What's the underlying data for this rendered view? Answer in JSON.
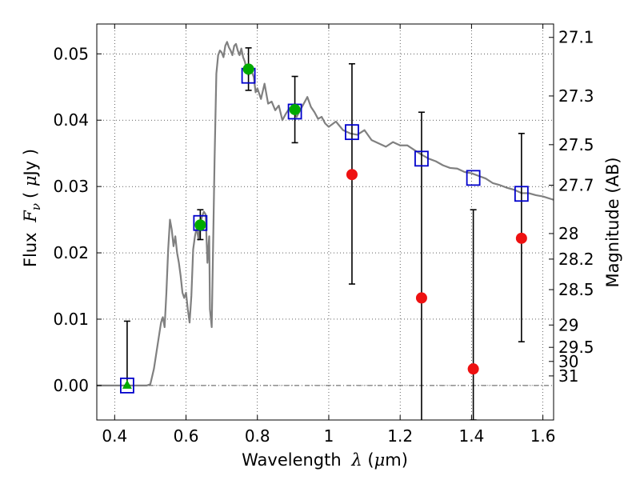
{
  "chart_data": {
    "type": "scatter",
    "xlabel_text": "Wavelength",
    "xlabel_symbol": "λ",
    "xlabel_unit_open": "(",
    "xlabel_unit_mu": "μ",
    "xlabel_unit_rest": "m)",
    "ylabel_text": "Flux",
    "ylabel_symbol": "F",
    "ylabel_sub": "ν",
    "ylabel_unit_open": "(",
    "ylabel_unit_mu": "μ",
    "ylabel_unit_rest": "Jy )",
    "y2label": "Magnitude (AB)",
    "xlim": [
      0.35,
      1.63
    ],
    "ylim": [
      -0.0052,
      0.0545
    ],
    "grid": true,
    "x_ticks": [
      {
        "value": 0.4,
        "label": "0.4"
      },
      {
        "value": 0.6,
        "label": "0.6"
      },
      {
        "value": 0.8,
        "label": "0.8"
      },
      {
        "value": 1.0,
        "label": "1"
      },
      {
        "value": 1.2,
        "label": "1.2"
      },
      {
        "value": 1.4,
        "label": "1.4"
      },
      {
        "value": 1.6,
        "label": "1.6"
      }
    ],
    "y_ticks": [
      {
        "value": 0.0,
        "label": "0.00"
      },
      {
        "value": 0.01,
        "label": "0.01"
      },
      {
        "value": 0.02,
        "label": "0.02"
      },
      {
        "value": 0.03,
        "label": "0.03"
      },
      {
        "value": 0.04,
        "label": "0.04"
      },
      {
        "value": 0.05,
        "label": "0.05"
      }
    ],
    "y2_ticks": [
      {
        "value": 27.1,
        "label": "27.1"
      },
      {
        "value": 27.3,
        "label": "27.3"
      },
      {
        "value": 27.5,
        "label": "27.5"
      },
      {
        "value": 27.7,
        "label": "27.7"
      },
      {
        "value": 28.0,
        "label": "28"
      },
      {
        "value": 28.2,
        "label": "28.2"
      },
      {
        "value": 28.5,
        "label": "28.5"
      },
      {
        "value": 29.0,
        "label": "29"
      },
      {
        "value": 29.5,
        "label": "29.5"
      },
      {
        "value": 30.0,
        "label": "30"
      },
      {
        "value": 31.0,
        "label": "31"
      }
    ],
    "model_spectrum": {
      "color": "#808080",
      "x": [
        0.35,
        0.49,
        0.5,
        0.51,
        0.52,
        0.53,
        0.535,
        0.54,
        0.545,
        0.55,
        0.555,
        0.56,
        0.565,
        0.57,
        0.575,
        0.58,
        0.585,
        0.59,
        0.595,
        0.6,
        0.605,
        0.61,
        0.615,
        0.62,
        0.625,
        0.63,
        0.635,
        0.64,
        0.645,
        0.65,
        0.655,
        0.66,
        0.665,
        0.667,
        0.672,
        0.68,
        0.685,
        0.69,
        0.695,
        0.7,
        0.705,
        0.71,
        0.715,
        0.72,
        0.725,
        0.73,
        0.735,
        0.74,
        0.745,
        0.75,
        0.755,
        0.76,
        0.765,
        0.77,
        0.775,
        0.78,
        0.785,
        0.79,
        0.795,
        0.8,
        0.81,
        0.82,
        0.83,
        0.84,
        0.85,
        0.86,
        0.87,
        0.88,
        0.89,
        0.9,
        0.91,
        0.92,
        0.93,
        0.94,
        0.95,
        0.96,
        0.97,
        0.98,
        0.99,
        1.0,
        1.02,
        1.04,
        1.06,
        1.08,
        1.1,
        1.12,
        1.14,
        1.16,
        1.18,
        1.2,
        1.22,
        1.24,
        1.26,
        1.28,
        1.3,
        1.32,
        1.34,
        1.36,
        1.38,
        1.4,
        1.42,
        1.44,
        1.46,
        1.48,
        1.5,
        1.52,
        1.54,
        1.56,
        1.58,
        1.6,
        1.63
      ],
      "y": [
        0.0,
        0.0,
        0.0002,
        0.0025,
        0.006,
        0.0095,
        0.0103,
        0.0088,
        0.014,
        0.0205,
        0.025,
        0.0235,
        0.021,
        0.0225,
        0.02,
        0.0185,
        0.0165,
        0.014,
        0.0132,
        0.014,
        0.0115,
        0.0095,
        0.0135,
        0.0205,
        0.0225,
        0.0238,
        0.022,
        0.0245,
        0.0255,
        0.0262,
        0.0258,
        0.0185,
        0.0225,
        0.0115,
        0.0088,
        0.034,
        0.047,
        0.0498,
        0.0505,
        0.0502,
        0.0495,
        0.0512,
        0.0518,
        0.051,
        0.0505,
        0.0498,
        0.0512,
        0.0515,
        0.0505,
        0.0498,
        0.0508,
        0.0495,
        0.0488,
        0.0475,
        0.0468,
        0.0478,
        0.0472,
        0.0465,
        0.0442,
        0.0448,
        0.0432,
        0.0455,
        0.0425,
        0.0428,
        0.0415,
        0.0422,
        0.04,
        0.041,
        0.0418,
        0.0412,
        0.0405,
        0.0415,
        0.0425,
        0.0435,
        0.042,
        0.0412,
        0.0402,
        0.0405,
        0.0395,
        0.039,
        0.0398,
        0.0385,
        0.038,
        0.0378,
        0.0385,
        0.037,
        0.0365,
        0.036,
        0.0367,
        0.0362,
        0.0362,
        0.0355,
        0.0348,
        0.0342,
        0.0338,
        0.0332,
        0.0328,
        0.0327,
        0.0322,
        0.032,
        0.0316,
        0.0312,
        0.0305,
        0.0302,
        0.0298,
        0.0295,
        0.029,
        0.029,
        0.0287,
        0.0285,
        0.028
      ]
    },
    "model_points": {
      "color": "#0000cc",
      "marker": "square",
      "points": [
        {
          "x": 0.435,
          "y": 0.0
        },
        {
          "x": 0.64,
          "y": 0.0245
        },
        {
          "x": 0.775,
          "y": 0.0467
        },
        {
          "x": 0.905,
          "y": 0.0413
        },
        {
          "x": 1.065,
          "y": 0.0382
        },
        {
          "x": 1.26,
          "y": 0.0342
        },
        {
          "x": 1.405,
          "y": 0.0313
        },
        {
          "x": 1.54,
          "y": 0.0289
        }
      ]
    },
    "detections": {
      "color": "#00aa00",
      "marker": "circle",
      "points": [
        {
          "x": 0.64,
          "y": 0.0242,
          "yerr_low": 0.0022,
          "yerr_high": 0.0023
        },
        {
          "x": 0.775,
          "y": 0.0477,
          "yerr_low": 0.0032,
          "yerr_high": 0.0032
        },
        {
          "x": 0.905,
          "y": 0.0416,
          "yerr_low": 0.005,
          "yerr_high": 0.005
        }
      ]
    },
    "upper_limit_point": {
      "color": "#00aa00",
      "marker": "triangle",
      "x": 0.435,
      "y": 0.0,
      "err_top": 0.0097
    },
    "low_sn_points": {
      "color": "#ee1111",
      "marker": "circle",
      "points": [
        {
          "x": 1.065,
          "y": 0.0318,
          "yerr_low": 0.0165,
          "yerr_high": 0.0167
        },
        {
          "x": 1.26,
          "y": 0.0132,
          "yerr_low": 0.0185,
          "yerr_high": 0.028
        },
        {
          "x": 1.405,
          "y": 0.0025,
          "yerr_low": 0.0077,
          "yerr_high": 0.024
        },
        {
          "x": 1.54,
          "y": 0.0222,
          "yerr_low": 0.0156,
          "yerr_high": 0.0158
        }
      ]
    },
    "zero_line": {
      "y": 0.0,
      "style": "dash-dot",
      "color": "#555555"
    }
  }
}
